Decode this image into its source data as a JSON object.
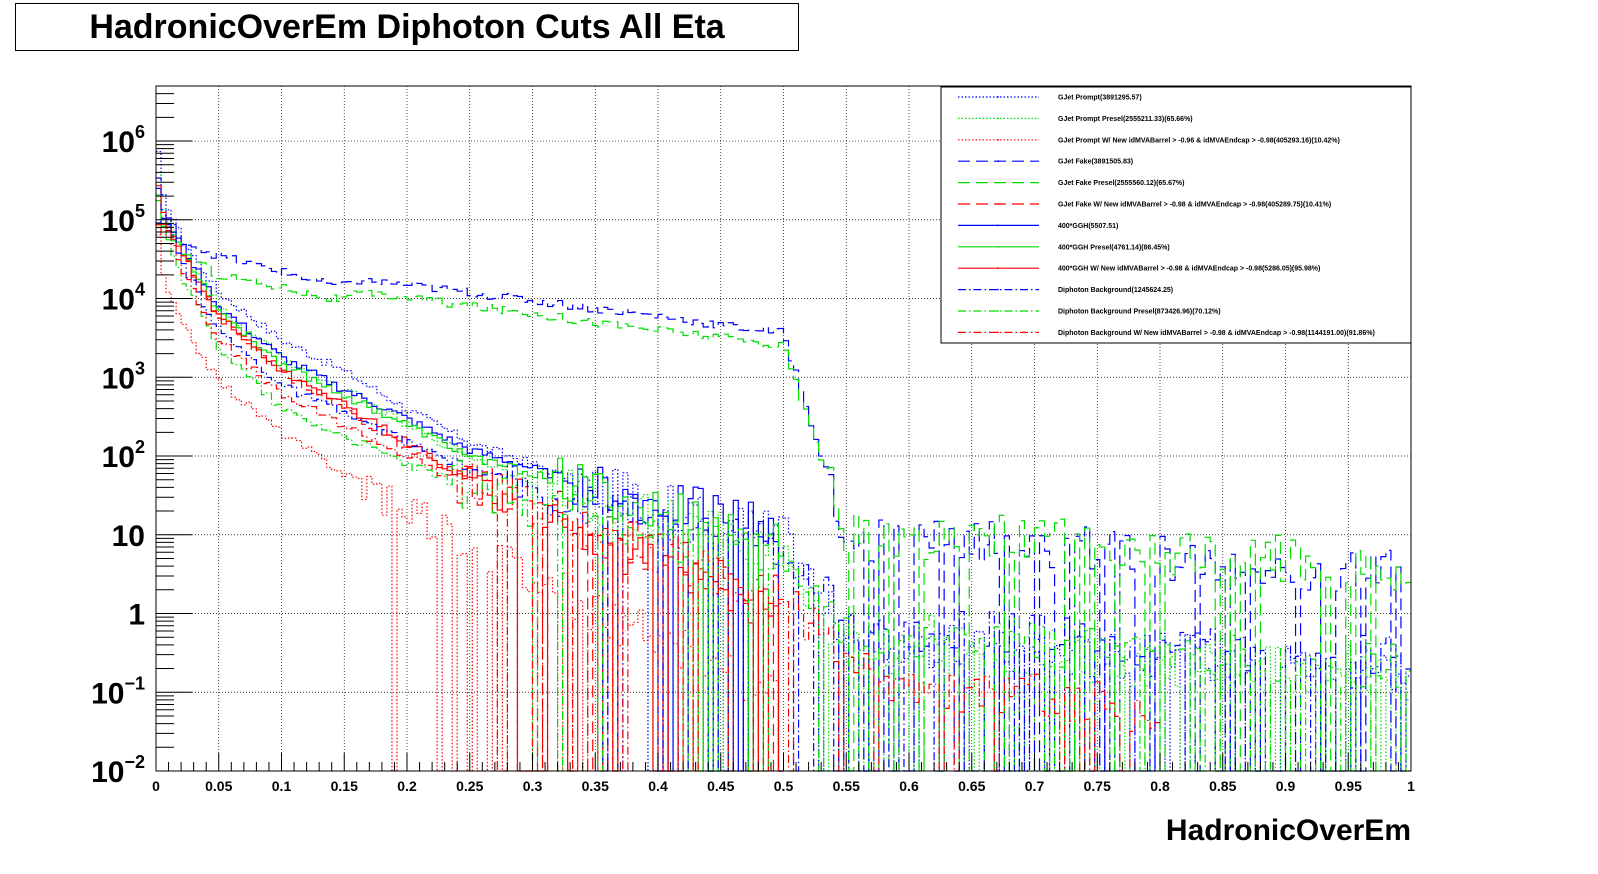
{
  "chart_data": {
    "type": "line",
    "title": "HadronicOverEm Diphoton Cuts All Eta",
    "xlabel": "HadronicOverEm",
    "ylabel": "",
    "xlim": [
      0,
      1
    ],
    "ylim": [
      0.01,
      5000000
    ],
    "yscale": "log",
    "grid": true,
    "legend_position": "top-right",
    "x_ticks": [
      "0",
      "0.05",
      "0.1",
      "0.15",
      "0.2",
      "0.25",
      "0.3",
      "0.35",
      "0.4",
      "0.45",
      "0.5",
      "0.55",
      "0.6",
      "0.65",
      "0.7",
      "0.75",
      "0.8",
      "0.85",
      "0.9",
      "0.95",
      "1"
    ],
    "y_ticks": [
      {
        "base": "10",
        "exp": "−2",
        "value": 0.01
      },
      {
        "base": "10",
        "exp": "−1",
        "value": 0.1
      },
      {
        "base": "1",
        "exp": "",
        "value": 1
      },
      {
        "base": "10",
        "exp": "",
        "value": 10
      },
      {
        "base": "10",
        "exp": "2",
        "value": 100
      },
      {
        "base": "10",
        "exp": "3",
        "value": 1000
      },
      {
        "base": "10",
        "exp": "4",
        "value": 10000
      },
      {
        "base": "10",
        "exp": "5",
        "value": 100000
      },
      {
        "base": "10",
        "exp": "6",
        "value": 1000000
      }
    ],
    "series": [
      {
        "name": "GJet Prompt(3891295.57)",
        "color": "#0000ff",
        "dash": "dotted",
        "points": [
          [
            0.0,
            1500000
          ],
          [
            0.005,
            200000
          ],
          [
            0.01,
            150000
          ],
          [
            0.02,
            60000
          ],
          [
            0.05,
            12000
          ],
          [
            0.1,
            3000
          ],
          [
            0.15,
            1200
          ],
          [
            0.2,
            400
          ],
          [
            0.25,
            150
          ],
          [
            0.3,
            80
          ],
          [
            0.35,
            40
          ],
          [
            0.4,
            25
          ],
          [
            0.45,
            15
          ],
          [
            0.5,
            10
          ],
          [
            0.55,
            0.5
          ],
          [
            0.6,
            0.4
          ],
          [
            0.7,
            0.3
          ],
          [
            0.8,
            0.3
          ],
          [
            0.9,
            0.25
          ],
          [
            1.0,
            0.2
          ]
        ]
      },
      {
        "name": "GJet Prompt Presel(2555211.33)(65.66%)",
        "color": "#00dd00",
        "dash": "dotted",
        "points": [
          [
            0.0,
            900000
          ],
          [
            0.005,
            150000
          ],
          [
            0.01,
            100000
          ],
          [
            0.02,
            40000
          ],
          [
            0.05,
            8000
          ],
          [
            0.1,
            1800
          ],
          [
            0.15,
            700
          ],
          [
            0.2,
            250
          ],
          [
            0.25,
            100
          ],
          [
            0.3,
            50
          ],
          [
            0.35,
            25
          ],
          [
            0.4,
            15
          ],
          [
            0.45,
            10
          ],
          [
            0.5,
            6
          ],
          [
            0.55,
            0.4
          ],
          [
            0.6,
            0.3
          ],
          [
            0.7,
            0.25
          ],
          [
            0.8,
            0.2
          ],
          [
            0.9,
            0.2
          ],
          [
            1.0,
            0.15
          ]
        ]
      },
      {
        "name": "GJet Prompt W/ New idMVABarrel > -0.96 & idMVAEndcap > -0.98(405293.16)(10.42%)",
        "color": "#ff0000",
        "dash": "dotted",
        "points": [
          [
            0.0,
            150000
          ],
          [
            0.005,
            20000
          ],
          [
            0.01,
            12000
          ],
          [
            0.02,
            5000
          ],
          [
            0.05,
            900
          ],
          [
            0.1,
            200
          ],
          [
            0.15,
            60
          ],
          [
            0.2,
            25
          ],
          [
            0.25,
            8
          ],
          [
            0.3,
            3
          ],
          [
            0.35,
            1
          ],
          [
            0.4,
            0.5
          ],
          [
            0.45,
            0.2
          ],
          [
            0.5,
            0.1
          ]
        ]
      },
      {
        "name": "GJet Fake(3891505.83)",
        "color": "#0000ff",
        "dash": "dashed",
        "points": [
          [
            0.0,
            400000
          ],
          [
            0.005,
            120000
          ],
          [
            0.01,
            100000
          ],
          [
            0.02,
            55000
          ],
          [
            0.05,
            35000
          ],
          [
            0.1,
            22000
          ],
          [
            0.14,
            15000
          ],
          [
            0.15,
            14500
          ],
          [
            0.16,
            17000
          ],
          [
            0.2,
            15000
          ],
          [
            0.25,
            12000
          ],
          [
            0.3,
            9500
          ],
          [
            0.35,
            7500
          ],
          [
            0.4,
            6000
          ],
          [
            0.45,
            4600
          ],
          [
            0.5,
            3700
          ],
          [
            0.55,
            10
          ],
          [
            0.6,
            8
          ],
          [
            0.7,
            8
          ],
          [
            0.8,
            5
          ],
          [
            0.9,
            4
          ],
          [
            1.0,
            3.5
          ]
        ]
      },
      {
        "name": "GJet Fake Presel(2555560.12)(65.67%)",
        "color": "#00dd00",
        "dash": "dashed",
        "points": [
          [
            0.0,
            300000
          ],
          [
            0.005,
            100000
          ],
          [
            0.01,
            80000
          ],
          [
            0.02,
            40000
          ],
          [
            0.05,
            20000
          ],
          [
            0.1,
            14000
          ],
          [
            0.14,
            10000
          ],
          [
            0.15,
            9800
          ],
          [
            0.16,
            11500
          ],
          [
            0.2,
            10500
          ],
          [
            0.25,
            8000
          ],
          [
            0.3,
            6500
          ],
          [
            0.35,
            5000
          ],
          [
            0.4,
            4000
          ],
          [
            0.45,
            3200
          ],
          [
            0.5,
            2500
          ],
          [
            0.55,
            12
          ],
          [
            0.6,
            9
          ],
          [
            0.7,
            9
          ],
          [
            0.8,
            6
          ],
          [
            0.9,
            5
          ],
          [
            1.0,
            3.5
          ]
        ]
      },
      {
        "name": "GJet Fake W/ New idMVABarrel > -0.98 & idMVAEndcap > -0.98(405289.75)(10.41%)",
        "color": "#ff0000",
        "dash": "dashed",
        "points": [
          [
            0.0,
            120000
          ],
          [
            0.005,
            60000
          ],
          [
            0.01,
            80000
          ],
          [
            0.02,
            40000
          ],
          [
            0.05,
            6000
          ],
          [
            0.1,
            1200
          ],
          [
            0.15,
            400
          ],
          [
            0.2,
            120
          ],
          [
            0.25,
            50
          ],
          [
            0.3,
            25
          ],
          [
            0.35,
            12
          ],
          [
            0.4,
            6
          ],
          [
            0.45,
            3
          ],
          [
            0.5,
            1.5
          ]
        ]
      },
      {
        "name": "400*GGH(5507.51)",
        "color": "#0000ff",
        "dash": "solid",
        "points": [
          [
            0.0,
            100000
          ],
          [
            0.01,
            90000
          ],
          [
            0.02,
            50000
          ],
          [
            0.05,
            8000
          ],
          [
            0.1,
            1800
          ],
          [
            0.15,
            700
          ],
          [
            0.2,
            300
          ],
          [
            0.25,
            120
          ],
          [
            0.3,
            70
          ],
          [
            0.35,
            40
          ],
          [
            0.4,
            25
          ],
          [
            0.45,
            18
          ],
          [
            0.5,
            12
          ]
        ]
      },
      {
        "name": "400*GGH Presel(4761.14)(86.45%)",
        "color": "#00dd00",
        "dash": "solid",
        "points": [
          [
            0.0,
            90000
          ],
          [
            0.01,
            80000
          ],
          [
            0.02,
            45000
          ],
          [
            0.05,
            7000
          ],
          [
            0.1,
            1500
          ],
          [
            0.15,
            600
          ],
          [
            0.2,
            250
          ],
          [
            0.25,
            100
          ],
          [
            0.3,
            60
          ],
          [
            0.35,
            35
          ],
          [
            0.4,
            22
          ],
          [
            0.45,
            15
          ],
          [
            0.5,
            10
          ]
        ]
      },
      {
        "name": "400*GGH W/ New idMVABarrel > -0.98 & idMVAEndcap > -0.98(5286.05)(95.98%)",
        "color": "#ff0000",
        "dash": "solid",
        "points": [
          [
            0.0,
            85000
          ],
          [
            0.01,
            75000
          ],
          [
            0.02,
            40000
          ],
          [
            0.05,
            6000
          ],
          [
            0.1,
            1200
          ],
          [
            0.15,
            450
          ],
          [
            0.2,
            150
          ],
          [
            0.25,
            50
          ],
          [
            0.3,
            20
          ],
          [
            0.35,
            8
          ],
          [
            0.4,
            4
          ],
          [
            0.45,
            2
          ],
          [
            0.5,
            1
          ]
        ]
      },
      {
        "name": "Diphoton Background(1245624.25)",
        "color": "#0000ff",
        "dash": "dashdot",
        "points": [
          [
            0.0,
            500000
          ],
          [
            0.005,
            150000
          ],
          [
            0.01,
            90000
          ],
          [
            0.02,
            30000
          ],
          [
            0.05,
            4000
          ],
          [
            0.1,
            800
          ],
          [
            0.15,
            350
          ],
          [
            0.2,
            150
          ],
          [
            0.25,
            70
          ],
          [
            0.3,
            40
          ],
          [
            0.35,
            25
          ],
          [
            0.4,
            18
          ],
          [
            0.45,
            12
          ],
          [
            0.5,
            8
          ],
          [
            0.55,
            0.8
          ],
          [
            0.6,
            0.6
          ],
          [
            0.7,
            0.5
          ],
          [
            0.8,
            0.4
          ],
          [
            0.9,
            0.3
          ],
          [
            1.0,
            0.25
          ]
        ]
      },
      {
        "name": "Diphoton Background Presel(873426.96)(70.12%)",
        "color": "#00dd00",
        "dash": "dashdot",
        "points": [
          [
            0.0,
            300000
          ],
          [
            0.005,
            100000
          ],
          [
            0.01,
            60000
          ],
          [
            0.02,
            20000
          ],
          [
            0.05,
            2500
          ],
          [
            0.1,
            400
          ],
          [
            0.15,
            180
          ],
          [
            0.2,
            80
          ],
          [
            0.25,
            40
          ],
          [
            0.3,
            25
          ],
          [
            0.35,
            15
          ],
          [
            0.4,
            10
          ],
          [
            0.45,
            7
          ],
          [
            0.5,
            5
          ],
          [
            0.55,
            0.6
          ],
          [
            0.6,
            0.5
          ],
          [
            0.7,
            0.4
          ],
          [
            0.8,
            0.3
          ],
          [
            0.9,
            0.25
          ],
          [
            1.0,
            0.2
          ]
        ]
      },
      {
        "name": "Diphoton Background W/ New idMVABarrel > -0.98 & idMVAEndcap > -0.98(1144191.00)(91.86%)",
        "color": "#ff0000",
        "dash": "dashdot",
        "points": [
          [
            0.0,
            450000
          ],
          [
            0.005,
            140000
          ],
          [
            0.01,
            80000
          ],
          [
            0.02,
            25000
          ],
          [
            0.05,
            3000
          ],
          [
            0.1,
            600
          ],
          [
            0.15,
            250
          ],
          [
            0.2,
            100
          ],
          [
            0.25,
            40
          ],
          [
            0.3,
            20
          ],
          [
            0.35,
            10
          ],
          [
            0.4,
            6
          ],
          [
            0.45,
            3
          ],
          [
            0.5,
            1.5
          ],
          [
            0.6,
            0.1
          ],
          [
            0.7,
            0.1
          ],
          [
            0.8,
            0.05
          ]
        ]
      }
    ]
  }
}
